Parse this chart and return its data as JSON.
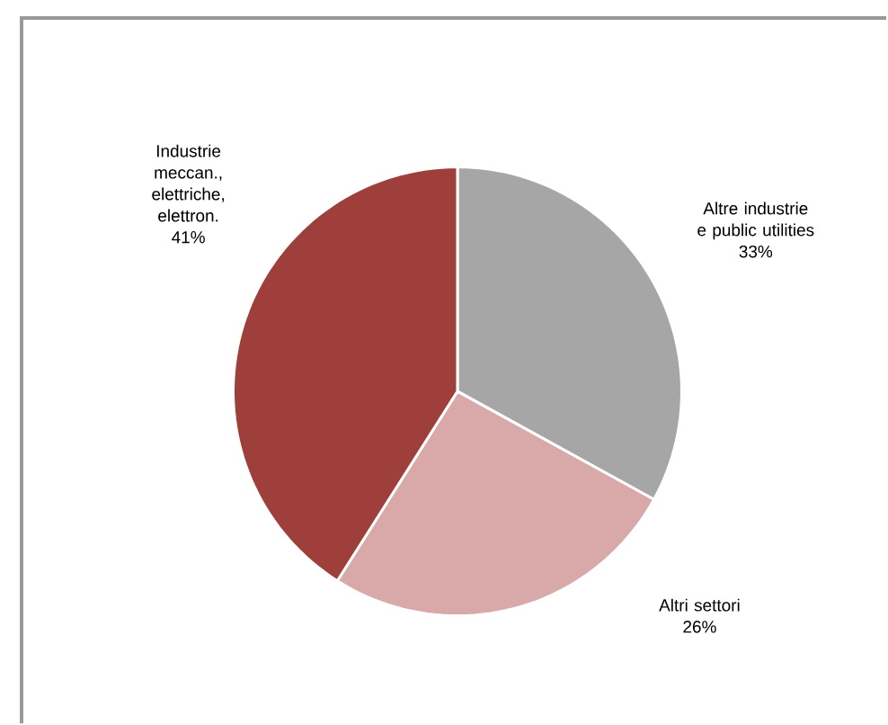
{
  "chart_data": {
    "type": "pie",
    "categories": [
      "Altre industrie e public utilities",
      "Altri settori",
      "Industrie meccan., elettriche, elettron."
    ],
    "values": [
      33,
      26,
      41
    ],
    "value_labels": [
      "33%",
      "26%",
      "41%"
    ],
    "colors": [
      "#a6a6a6",
      "#d9a9a9",
      "#9e3f3c"
    ]
  }
}
